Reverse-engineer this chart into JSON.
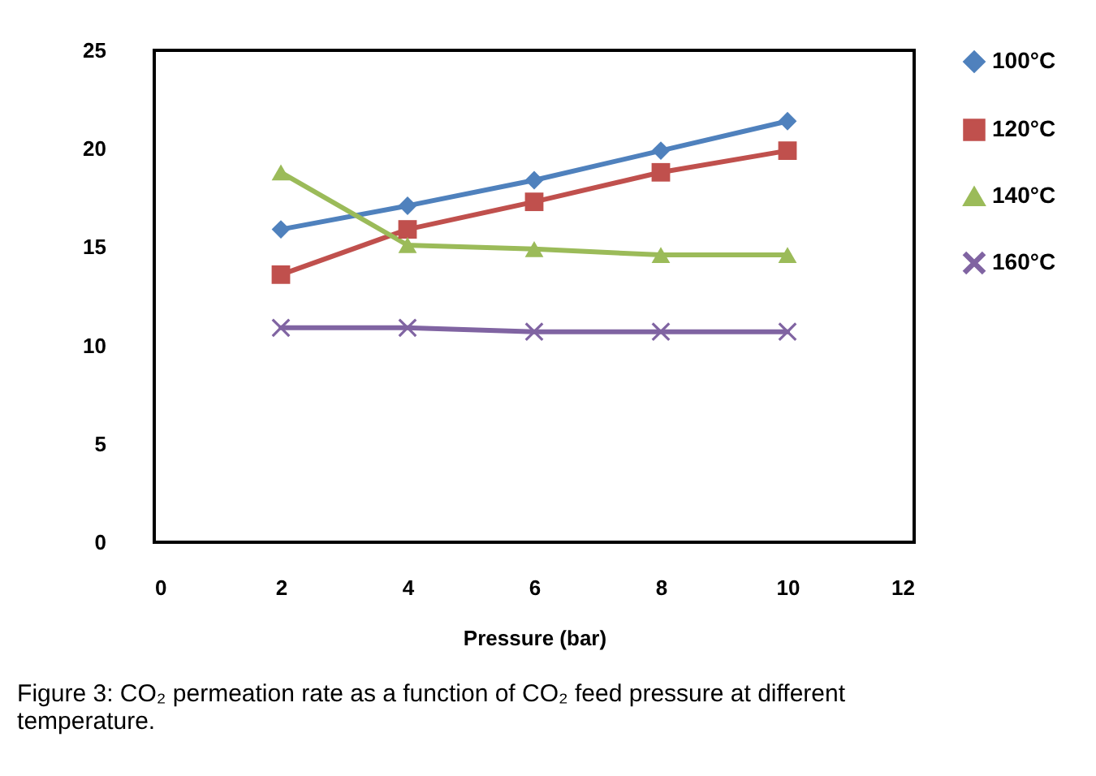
{
  "chart_data": {
    "type": "line",
    "xlabel": "Pressure (bar)",
    "annotations": [
      "Figure 3: CO₂ permeation rate as a function of CO₂ feed pressure at different temperature."
    ],
    "x": [
      2,
      4,
      6,
      8,
      10
    ],
    "series": [
      {
        "name": "100°C",
        "color": "#4f81bd",
        "marker": "diamond",
        "values": [
          15.9,
          17.1,
          18.4,
          19.9,
          21.4
        ]
      },
      {
        "name": "120°C",
        "color": "#c0504d",
        "marker": "square",
        "values": [
          13.6,
          15.9,
          17.3,
          18.8,
          19.9
        ]
      },
      {
        "name": "140°C",
        "color": "#9bbb59",
        "marker": "triangle",
        "values": [
          18.8,
          15.1,
          14.9,
          14.6,
          14.6
        ]
      },
      {
        "name": "160°C",
        "color": "#8064a2",
        "marker": "cross",
        "values": [
          10.9,
          10.9,
          10.7,
          10.7,
          10.7
        ]
      }
    ],
    "xlim": [
      0,
      12
    ],
    "xticks": [
      0,
      2,
      4,
      6,
      8,
      10,
      12
    ],
    "ylim": [
      0,
      25
    ],
    "yticks": [
      0,
      5,
      10,
      15,
      20,
      25
    ],
    "grid": false,
    "legend": "right"
  }
}
